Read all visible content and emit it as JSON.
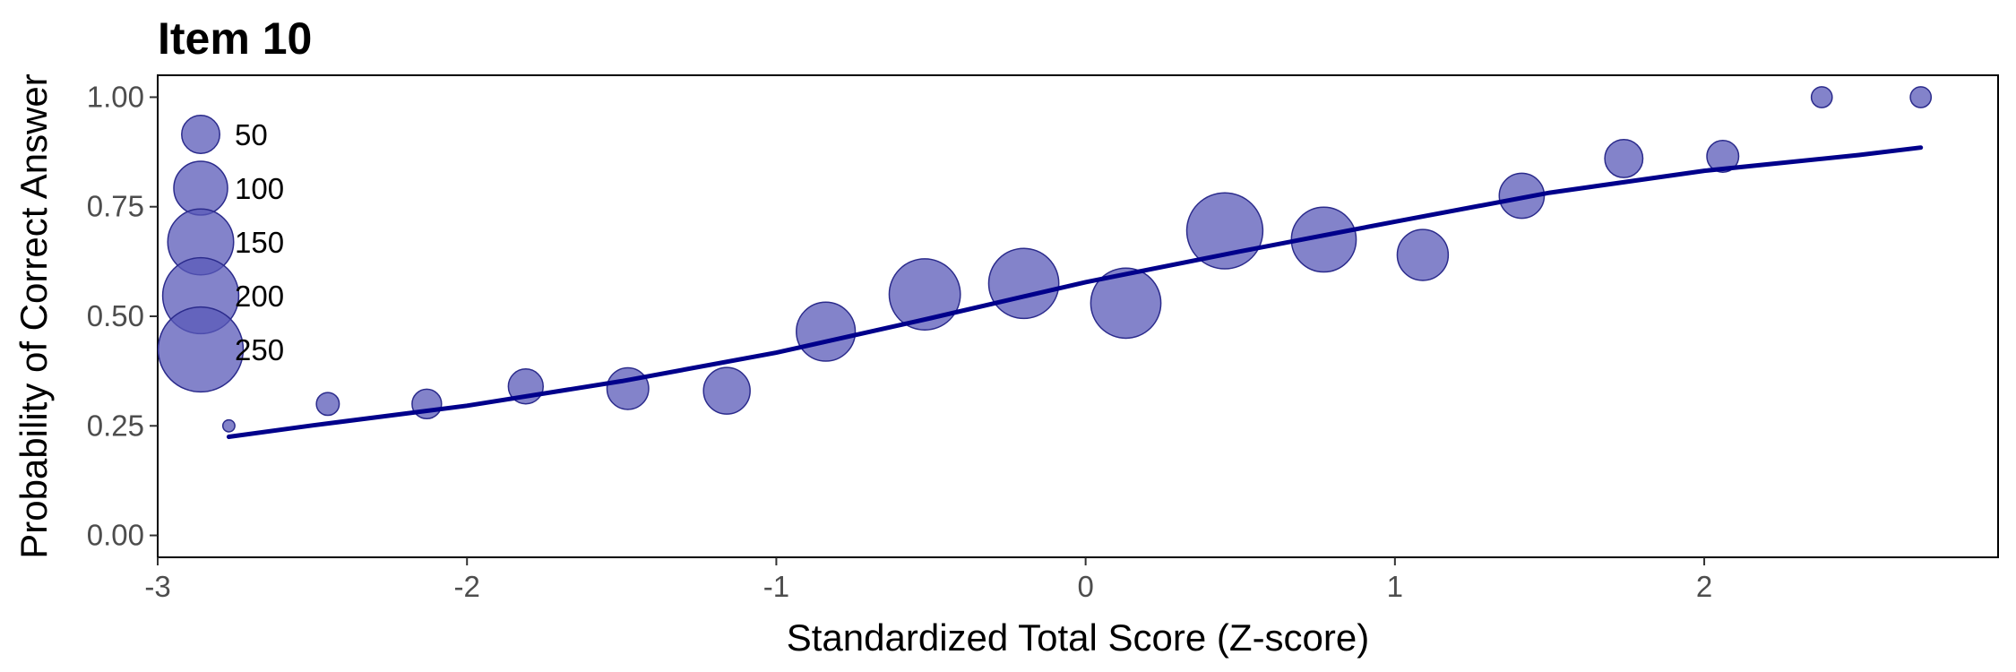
{
  "chart_data": {
    "type": "scatter",
    "title": "Item 10",
    "xlabel": "Standardized Total Score (Z-score)",
    "ylabel": "Probability of Correct Answer",
    "xlim": [
      -3.0,
      2.95
    ],
    "ylim": [
      -0.05,
      1.05
    ],
    "x_ticks": [
      -3,
      -2,
      -1,
      0,
      1,
      2
    ],
    "x_tick_labels": [
      "-3",
      "-2",
      "-1",
      "0",
      "1",
      "2"
    ],
    "y_ticks": [
      0,
      0.25,
      0.5,
      0.75,
      1.0
    ],
    "y_tick_labels": [
      "0.00",
      "0.25",
      "0.50",
      "0.75",
      "1.00"
    ],
    "grid": false,
    "legend_position": "top-left",
    "point_color": "#5a5ab8",
    "line_color": "#00008b",
    "points": [
      {
        "x": -2.77,
        "y": 0.25,
        "n": 5
      },
      {
        "x": -2.45,
        "y": 0.3,
        "n": 18
      },
      {
        "x": -2.13,
        "y": 0.3,
        "n": 30
      },
      {
        "x": -1.81,
        "y": 0.34,
        "n": 42
      },
      {
        "x": -1.48,
        "y": 0.335,
        "n": 60
      },
      {
        "x": -1.16,
        "y": 0.33,
        "n": 75
      },
      {
        "x": -0.84,
        "y": 0.465,
        "n": 120
      },
      {
        "x": -0.52,
        "y": 0.55,
        "n": 175
      },
      {
        "x": -0.2,
        "y": 0.575,
        "n": 170
      },
      {
        "x": 0.13,
        "y": 0.53,
        "n": 170
      },
      {
        "x": 0.45,
        "y": 0.695,
        "n": 200
      },
      {
        "x": 0.77,
        "y": 0.675,
        "n": 145
      },
      {
        "x": 1.09,
        "y": 0.64,
        "n": 90
      },
      {
        "x": 1.41,
        "y": 0.775,
        "n": 70
      },
      {
        "x": 1.74,
        "y": 0.86,
        "n": 50
      },
      {
        "x": 2.06,
        "y": 0.865,
        "n": 35
      },
      {
        "x": 2.38,
        "y": 1.0,
        "n": 15
      },
      {
        "x": 2.7,
        "y": 1.0,
        "n": 15
      }
    ],
    "fit_line": {
      "x": [
        -2.77,
        -2.5,
        -2.0,
        -1.5,
        -1.0,
        -0.5,
        0.0,
        0.5,
        1.0,
        1.5,
        2.0,
        2.5,
        2.7
      ],
      "y": [
        0.225,
        0.251,
        0.296,
        0.352,
        0.417,
        0.496,
        0.578,
        0.648,
        0.716,
        0.782,
        0.832,
        0.868,
        0.885
      ]
    },
    "legend": {
      "sizes": [
        50,
        100,
        150,
        200,
        250
      ],
      "labels": [
        "50",
        "100",
        "150",
        "200",
        "250"
      ]
    }
  }
}
